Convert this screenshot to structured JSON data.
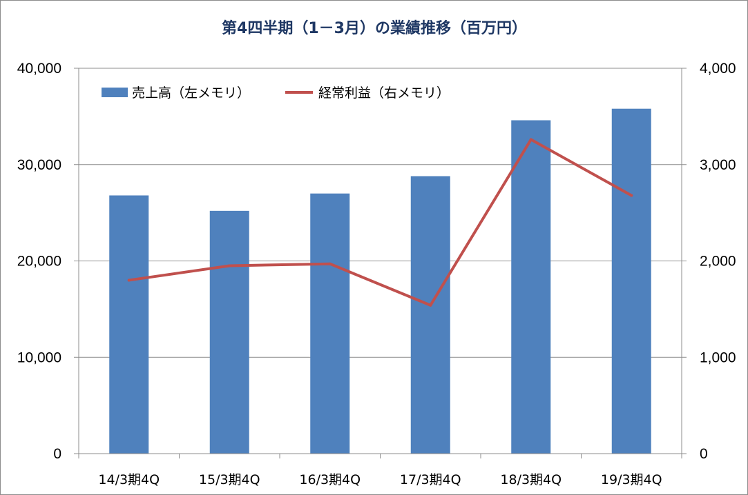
{
  "chart_data": {
    "type": "bar",
    "title": "第4四半期（1－3月）の業績推移（百万円）",
    "categories": [
      "14/3期4Q",
      "15/3期4Q",
      "16/3期4Q",
      "17/3期4Q",
      "18/3期4Q",
      "19/3期4Q"
    ],
    "series": [
      {
        "name": "売上高（左メモリ）",
        "type": "bar",
        "axis": "left",
        "color": "#4f81bd",
        "values": [
          26800,
          25200,
          27000,
          28800,
          34600,
          35800
        ]
      },
      {
        "name": "経常利益（右メモリ）",
        "type": "line",
        "axis": "right",
        "color": "#c0504d",
        "values": [
          1800,
          1950,
          1970,
          1540,
          3260,
          2680
        ]
      }
    ],
    "y_left": {
      "min": 0,
      "max": 40000,
      "ticks": [
        "0",
        "10,000",
        "20,000",
        "30,000",
        "40,000"
      ]
    },
    "y_right": {
      "min": 0,
      "max": 4000,
      "ticks": [
        "0",
        "1,000",
        "2,000",
        "3,000",
        "4,000"
      ]
    },
    "grid": true,
    "legend_position": "top-left"
  }
}
